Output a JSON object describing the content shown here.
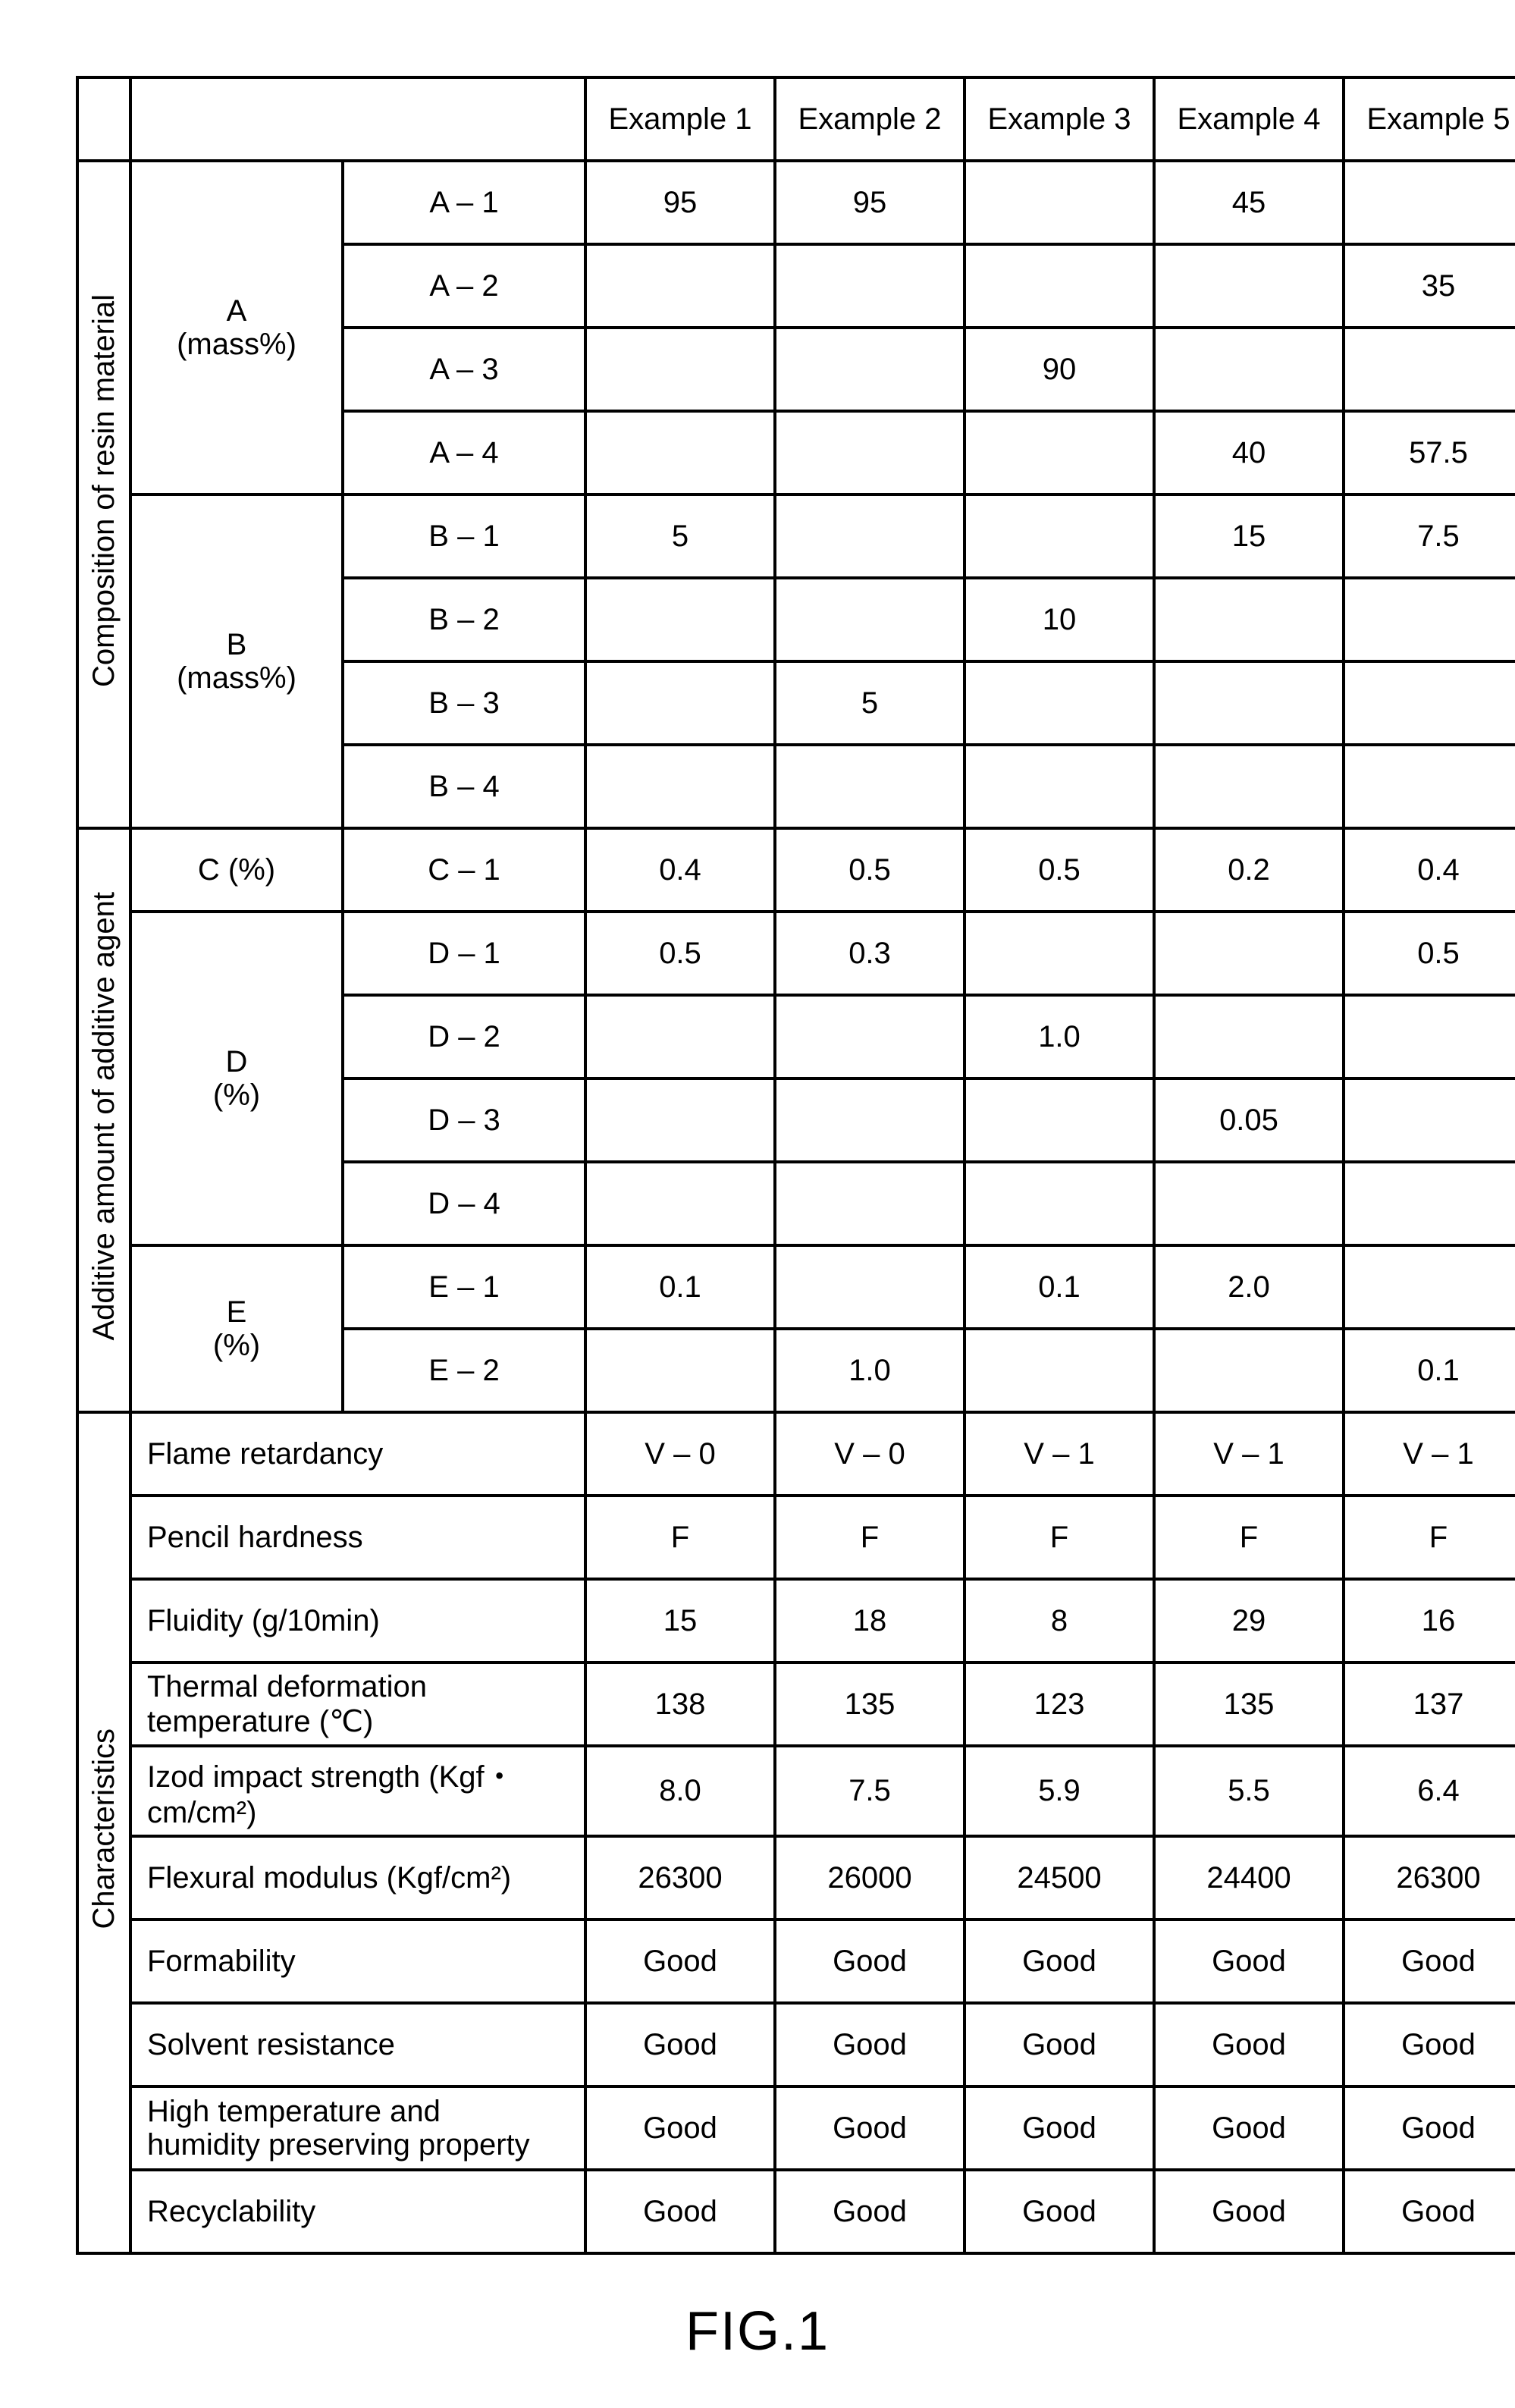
{
  "headers": {
    "ex1": "Example 1",
    "ex2": "Example 2",
    "ex3": "Example 3",
    "ex4": "Example 4",
    "ex5": "Example 5"
  },
  "groupLabels": {
    "comp": "Composition of resin material",
    "add": "Additive amount of additive agent",
    "char": "Characteristics"
  },
  "subGroups": {
    "A": "A\n(mass%)",
    "B": "B\n(mass%)",
    "C": "C (%)",
    "D": "D\n(%)",
    "E": "E\n(%)"
  },
  "rowLabels": {
    "A1": "A – 1",
    "A2": "A – 2",
    "A3": "A – 3",
    "A4": "A – 4",
    "B1": "B – 1",
    "B2": "B – 2",
    "B3": "B – 3",
    "B4": "B – 4",
    "C1": "C – 1",
    "D1": "D – 1",
    "D2": "D – 2",
    "D3": "D – 3",
    "D4": "D – 4",
    "E1": "E – 1",
    "E2": "E – 2"
  },
  "data": {
    "A1": {
      "e1": "95",
      "e2": "95",
      "e3": "",
      "e4": "45",
      "e5": ""
    },
    "A2": {
      "e1": "",
      "e2": "",
      "e3": "",
      "e4": "",
      "e5": "35"
    },
    "A3": {
      "e1": "",
      "e2": "",
      "e3": "90",
      "e4": "",
      "e5": ""
    },
    "A4": {
      "e1": "",
      "e2": "",
      "e3": "",
      "e4": "40",
      "e5": "57.5"
    },
    "B1": {
      "e1": "5",
      "e2": "",
      "e3": "",
      "e4": "15",
      "e5": "7.5"
    },
    "B2": {
      "e1": "",
      "e2": "",
      "e3": "10",
      "e4": "",
      "e5": ""
    },
    "B3": {
      "e1": "",
      "e2": "5",
      "e3": "",
      "e4": "",
      "e5": ""
    },
    "B4": {
      "e1": "",
      "e2": "",
      "e3": "",
      "e4": "",
      "e5": ""
    },
    "C1": {
      "e1": "0.4",
      "e2": "0.5",
      "e3": "0.5",
      "e4": "0.2",
      "e5": "0.4"
    },
    "D1": {
      "e1": "0.5",
      "e2": "0.3",
      "e3": "",
      "e4": "",
      "e5": "0.5"
    },
    "D2": {
      "e1": "",
      "e2": "",
      "e3": "1.0",
      "e4": "",
      "e5": ""
    },
    "D3": {
      "e1": "",
      "e2": "",
      "e3": "",
      "e4": "0.05",
      "e5": ""
    },
    "D4": {
      "e1": "",
      "e2": "",
      "e3": "",
      "e4": "",
      "e5": ""
    },
    "E1": {
      "e1": "0.1",
      "e2": "",
      "e3": "0.1",
      "e4": "2.0",
      "e5": ""
    },
    "E2": {
      "e1": "",
      "e2": "1.0",
      "e3": "",
      "e4": "",
      "e5": "0.1"
    }
  },
  "charLabels": {
    "flame": "Flame retardancy",
    "pencil": "Pencil hardness",
    "fluid": "Fluidity (g/10min)",
    "tdt": "Thermal deformation temperature (℃)",
    "izod": "Izod impact strength (Kgf・cm/cm²)",
    "flex": "Flexural modulus (Kgf/cm²)",
    "form": "Formability",
    "solv": "Solvent resistance",
    "hthp": "High temperature and\nhumidity preserving property",
    "recy": "Recyclability"
  },
  "charData": {
    "flame": {
      "e1": "V – 0",
      "e2": "V – 0",
      "e3": "V – 1",
      "e4": "V – 1",
      "e5": "V – 1"
    },
    "pencil": {
      "e1": "F",
      "e2": "F",
      "e3": "F",
      "e4": "F",
      "e5": "F"
    },
    "fluid": {
      "e1": "15",
      "e2": "18",
      "e3": "8",
      "e4": "29",
      "e5": "16"
    },
    "tdt": {
      "e1": "138",
      "e2": "135",
      "e3": "123",
      "e4": "135",
      "e5": "137"
    },
    "izod": {
      "e1": "8.0",
      "e2": "7.5",
      "e3": "5.9",
      "e4": "5.5",
      "e5": "6.4"
    },
    "flex": {
      "e1": "26300",
      "e2": "26000",
      "e3": "24500",
      "e4": "24400",
      "e5": "26300"
    },
    "form": {
      "e1": "Good",
      "e2": "Good",
      "e3": "Good",
      "e4": "Good",
      "e5": "Good"
    },
    "solv": {
      "e1": "Good",
      "e2": "Good",
      "e3": "Good",
      "e4": "Good",
      "e5": "Good"
    },
    "hthp": {
      "e1": "Good",
      "e2": "Good",
      "e3": "Good",
      "e4": "Good",
      "e5": "Good"
    },
    "recy": {
      "e1": "Good",
      "e2": "Good",
      "e3": "Good",
      "e4": "Good",
      "e5": "Good"
    }
  },
  "caption": "FIG.1"
}
